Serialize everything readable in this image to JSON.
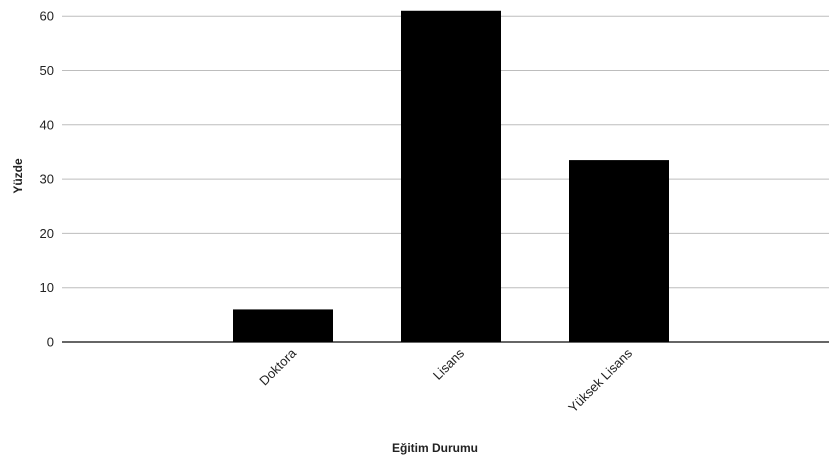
{
  "chart_data": {
    "type": "bar",
    "categories": [
      "Doktora",
      "Lisans",
      "Yüksek Lisans"
    ],
    "values": [
      6,
      61,
      33.5
    ],
    "xlabel": "Eğitim Durumu",
    "ylabel": "Yüzde",
    "ylim": [
      0,
      60
    ],
    "yticks": [
      0,
      10,
      20,
      30,
      40,
      50,
      60
    ],
    "grid": true,
    "legend": "none",
    "bar_color": "#000000",
    "grid_color": "#bdbdbd",
    "axis_color": "#333333"
  }
}
